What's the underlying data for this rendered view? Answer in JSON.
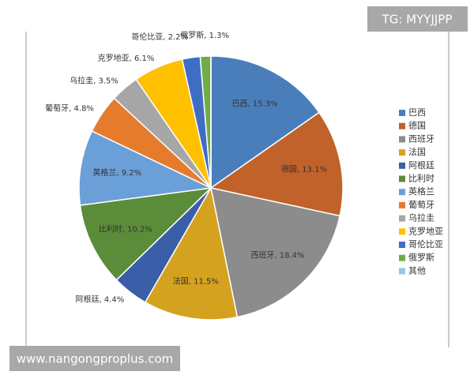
{
  "chart_data": {
    "type": "pie",
    "categories": [
      "巴西",
      "德国",
      "西班牙",
      "法国",
      "阿根廷",
      "比利时",
      "英格兰",
      "葡萄牙",
      "乌拉圭",
      "克罗地亚",
      "哥伦比亚",
      "俄罗斯",
      "其他"
    ],
    "values": [
      15.3,
      13.1,
      18.4,
      11.5,
      4.4,
      10.2,
      9.2,
      4.8,
      3.5,
      6.1,
      2.2,
      1.3,
      0
    ],
    "value_labels": [
      "巴西, 15.3%",
      "德国, 13.1%",
      "西班牙, 18.4%",
      "法国, 11.5%",
      "阿根廷, 4.4%",
      "比利时, 10.2%",
      "英格兰, 9.2%",
      "葡萄牙, 4.8%",
      "乌拉圭, 3.5%",
      "克罗地亚, 6.1%",
      "哥伦比亚, 2.2%",
      "俄罗斯, 1.3%",
      null
    ],
    "colors": [
      "#4a7ebb",
      "#c0622a",
      "#8c8c8c",
      "#d4a21f",
      "#3b5ea8",
      "#5b8c3a",
      "#6a9fd8",
      "#e57c2d",
      "#a6a6a6",
      "#ffc000",
      "#3e6dc4",
      "#70ad47",
      "#9dc3e6"
    ],
    "legend": "right"
  },
  "watermarks": {
    "top": "TG: MYYJJPP",
    "bottom": "www.nangongproplus.com"
  }
}
